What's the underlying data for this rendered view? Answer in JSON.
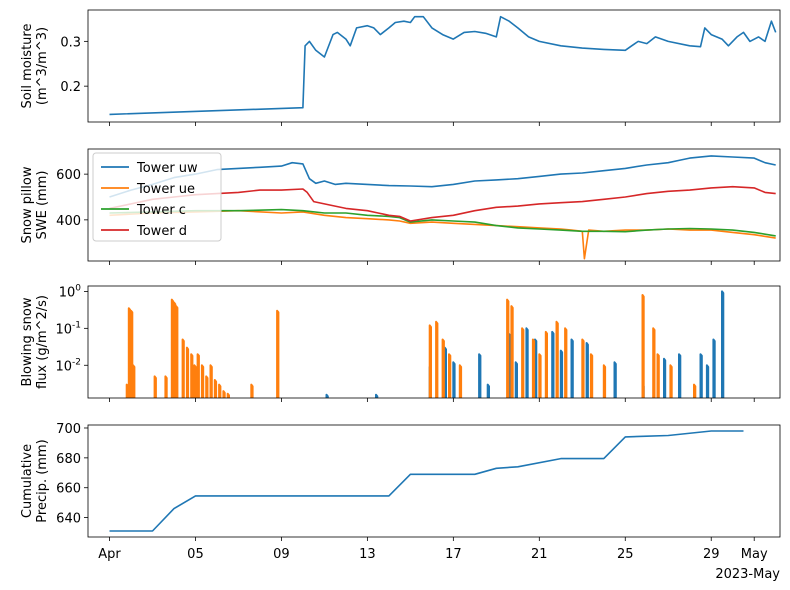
{
  "chart_data": [
    {
      "type": "line",
      "name": "soil-moisture",
      "ylabel": [
        "Soil moisture",
        "(m^3/m^3)"
      ],
      "ylim": [
        0.12,
        0.37
      ],
      "yscale": "linear",
      "yticks": [
        0.2,
        0.3
      ],
      "ytick_labels": [
        "0.2",
        "0.3"
      ],
      "series": [
        {
          "name": "Soil moisture",
          "color": "#1f77b4",
          "x": [
            0,
            9,
            9.1,
            9.3,
            9.6,
            10.0,
            10.4,
            10.6,
            11.0,
            11.2,
            11.5,
            12.0,
            12.3,
            12.6,
            13.0,
            13.3,
            13.7,
            14.0,
            14.2,
            14.6,
            15.0,
            15.5,
            16.0,
            16.5,
            17.0,
            17.5,
            18.0,
            18.2,
            18.6,
            19.0,
            19.5,
            20.0,
            21.0,
            22.0,
            23.0,
            24.0,
            24.3,
            24.6,
            25.0,
            25.4,
            26.0,
            27.0,
            27.5,
            27.7,
            28.0,
            28.5,
            28.8,
            29.2,
            29.5,
            29.8,
            30.2,
            30.5,
            30.8,
            31.0
          ],
          "y": [
            0.137,
            0.152,
            0.29,
            0.3,
            0.28,
            0.265,
            0.315,
            0.32,
            0.305,
            0.29,
            0.33,
            0.335,
            0.33,
            0.315,
            0.33,
            0.342,
            0.345,
            0.342,
            0.355,
            0.355,
            0.33,
            0.315,
            0.305,
            0.32,
            0.322,
            0.318,
            0.31,
            0.355,
            0.345,
            0.33,
            0.31,
            0.3,
            0.29,
            0.285,
            0.282,
            0.28,
            0.29,
            0.3,
            0.295,
            0.31,
            0.3,
            0.29,
            0.288,
            0.33,
            0.315,
            0.305,
            0.29,
            0.31,
            0.32,
            0.3,
            0.31,
            0.3,
            0.345,
            0.32
          ]
        }
      ]
    },
    {
      "type": "line",
      "name": "snow-pillow",
      "ylabel": [
        "Snow pillow",
        "SWE (mm)"
      ],
      "ylim": [
        220,
        710
      ],
      "yscale": "linear",
      "yticks": [
        400,
        600
      ],
      "ytick_labels": [
        "400",
        "600"
      ],
      "legend": "upper-left",
      "series": [
        {
          "name": "Tower uw",
          "color": "#1f77b4",
          "x": [
            0,
            1,
            2,
            3,
            4,
            5,
            6,
            7,
            8,
            8.5,
            9,
            9.3,
            9.6,
            10,
            10.5,
            11,
            12,
            13,
            14,
            15,
            16,
            17,
            18,
            19,
            20,
            21,
            22,
            23,
            24,
            25,
            26,
            26.5,
            27,
            28,
            29,
            30,
            30.5,
            31
          ],
          "y": [
            500,
            530,
            555,
            585,
            600,
            620,
            625,
            630,
            635,
            650,
            645,
            580,
            560,
            570,
            555,
            560,
            555,
            550,
            548,
            545,
            555,
            570,
            575,
            580,
            590,
            600,
            605,
            615,
            625,
            640,
            650,
            660,
            670,
            680,
            675,
            670,
            650,
            640
          ]
        },
        {
          "name": "Tower ue",
          "color": "#ff7f0e",
          "x": [
            0,
            2,
            4,
            6,
            8,
            9,
            10,
            11,
            12,
            13,
            13.5,
            14,
            15,
            16,
            17,
            18,
            19,
            20,
            21,
            21.5,
            22,
            22.1,
            22.3,
            23,
            24,
            25,
            26,
            27,
            28,
            29,
            30,
            31
          ],
          "y": [
            420,
            430,
            435,
            440,
            430,
            435,
            420,
            410,
            405,
            400,
            395,
            385,
            390,
            385,
            380,
            375,
            370,
            365,
            360,
            355,
            350,
            230,
            355,
            350,
            355,
            355,
            360,
            355,
            355,
            345,
            335,
            320
          ]
        },
        {
          "name": "Tower c",
          "color": "#2ca02c",
          "x": [
            0,
            2,
            4,
            6,
            8,
            9,
            10,
            11,
            12,
            13,
            13.5,
            14,
            15,
            16,
            17,
            18,
            19,
            20,
            21,
            22,
            23,
            24,
            25,
            26,
            27,
            28,
            29,
            30,
            31
          ],
          "y": [
            430,
            435,
            440,
            440,
            445,
            440,
            430,
            430,
            420,
            415,
            410,
            390,
            400,
            395,
            390,
            375,
            365,
            360,
            355,
            350,
            350,
            348,
            355,
            360,
            362,
            360,
            355,
            345,
            330
          ]
        },
        {
          "name": "Tower d",
          "color": "#d62728",
          "x": [
            0,
            1,
            2,
            3,
            4,
            5,
            6,
            7,
            8,
            9,
            9.2,
            9.5,
            10,
            10.5,
            11,
            11.5,
            12,
            12.5,
            13,
            13.5,
            14,
            15,
            16,
            17,
            18,
            19,
            20,
            21,
            22,
            23,
            24,
            25,
            26,
            27,
            28,
            29,
            30,
            30.5,
            31
          ],
          "y": [
            450,
            470,
            490,
            500,
            510,
            515,
            520,
            530,
            530,
            535,
            520,
            480,
            470,
            460,
            450,
            445,
            440,
            430,
            420,
            415,
            395,
            410,
            420,
            440,
            455,
            460,
            470,
            475,
            480,
            490,
            500,
            515,
            525,
            530,
            540,
            545,
            540,
            520,
            515
          ]
        }
      ]
    },
    {
      "type": "line",
      "name": "blowing-snow-flux",
      "ylabel": [
        "Blowing snow",
        "flux (g/m^2/s)"
      ],
      "ylim": [
        0.0013,
        1.4
      ],
      "yscale": "log",
      "yticks": [
        0.01,
        0.1,
        1
      ],
      "ytick_labels": [
        "10^-2",
        "10^-1",
        "10^0"
      ],
      "series": [
        {
          "name": "Tower uw",
          "color": "#1f77b4",
          "spikes": [
            [
              10.1,
              0.0016
            ],
            [
              12.4,
              0.0016
            ],
            [
              14.9,
              0.009
            ],
            [
              15.6,
              0.03
            ],
            [
              16.0,
              0.012
            ],
            [
              17.2,
              0.02
            ],
            [
              17.6,
              0.003
            ],
            [
              18.6,
              0.07
            ],
            [
              18.9,
              0.012
            ],
            [
              19.4,
              0.1
            ],
            [
              19.8,
              0.05
            ],
            [
              20.6,
              0.08
            ],
            [
              21.0,
              0.025
            ],
            [
              21.5,
              0.05
            ],
            [
              22.2,
              0.04
            ],
            [
              23.5,
              0.012
            ],
            [
              24.8,
              0.003
            ],
            [
              25.8,
              0.015
            ],
            [
              26.5,
              0.02
            ],
            [
              27.5,
              0.02
            ],
            [
              27.8,
              0.01
            ],
            [
              28.1,
              0.05
            ],
            [
              28.5,
              1.0
            ]
          ]
        },
        {
          "name": "Tower ue",
          "color": "#ff7f0e",
          "spikes": [
            [
              0.8,
              0.003
            ],
            [
              0.9,
              0.35
            ],
            [
              1.0,
              0.3
            ],
            [
              1.1,
              0.01
            ],
            [
              2.1,
              0.005
            ],
            [
              2.6,
              0.005
            ],
            [
              2.9,
              0.6
            ],
            [
              3.0,
              0.5
            ],
            [
              3.1,
              0.4
            ],
            [
              3.4,
              0.05
            ],
            [
              3.6,
              0.03
            ],
            [
              3.8,
              0.02
            ],
            [
              3.95,
              0.01
            ],
            [
              4.1,
              0.02
            ],
            [
              4.3,
              0.01
            ],
            [
              4.5,
              0.005
            ],
            [
              4.7,
              0.01
            ],
            [
              4.9,
              0.004
            ],
            [
              5.1,
              0.003
            ],
            [
              5.3,
              0.002
            ],
            [
              5.5,
              0.0017
            ],
            [
              6.6,
              0.003
            ],
            [
              7.8,
              0.3
            ],
            [
              14.9,
              0.12
            ],
            [
              15.2,
              0.15
            ],
            [
              15.5,
              0.05
            ],
            [
              15.8,
              0.02
            ],
            [
              16.3,
              0.01
            ],
            [
              18.5,
              0.6
            ],
            [
              18.7,
              0.4
            ],
            [
              19.2,
              0.1
            ],
            [
              19.7,
              0.05
            ],
            [
              20.0,
              0.02
            ],
            [
              20.3,
              0.08
            ],
            [
              20.8,
              0.15
            ],
            [
              21.2,
              0.1
            ],
            [
              22.0,
              0.05
            ],
            [
              22.4,
              0.02
            ],
            [
              23.0,
              0.01
            ],
            [
              24.8,
              0.8
            ],
            [
              25.3,
              0.1
            ],
            [
              25.5,
              0.02
            ],
            [
              26.1,
              0.01
            ],
            [
              27.2,
              0.003
            ]
          ]
        }
      ]
    },
    {
      "type": "line",
      "name": "cumulative-precip",
      "ylabel": [
        "Cumulative",
        "Precip. (mm)"
      ],
      "ylim": [
        627,
        702
      ],
      "yscale": "linear",
      "yticks": [
        640,
        660,
        680,
        700
      ],
      "ytick_labels": [
        "640",
        "660",
        "680",
        "700"
      ],
      "series": [
        {
          "name": "Cumulative Precip.",
          "color": "#1f77b4",
          "x": [
            0,
            2,
            3,
            4,
            13,
            14,
            17,
            18,
            19,
            21,
            22,
            23,
            24,
            25,
            26,
            28,
            29.5
          ],
          "y": [
            631,
            631,
            646,
            654.5,
            654.5,
            669,
            669,
            673,
            674,
            679.5,
            679.5,
            679.5,
            694,
            694.5,
            695,
            698,
            698
          ]
        }
      ]
    }
  ],
  "x_axis": {
    "xlim": [
      -1,
      31.2
    ],
    "ticks": [
      0,
      4,
      8,
      12,
      16,
      20,
      24,
      28,
      30
    ],
    "tick_labels": [
      "Apr",
      "05",
      "09",
      "13",
      "17",
      "21",
      "25",
      "29",
      "May"
    ],
    "offset_label": "2023-May"
  },
  "colors": {
    "c0": "#1f77b4",
    "c1": "#ff7f0e",
    "c2": "#2ca02c",
    "c3": "#d62728"
  }
}
